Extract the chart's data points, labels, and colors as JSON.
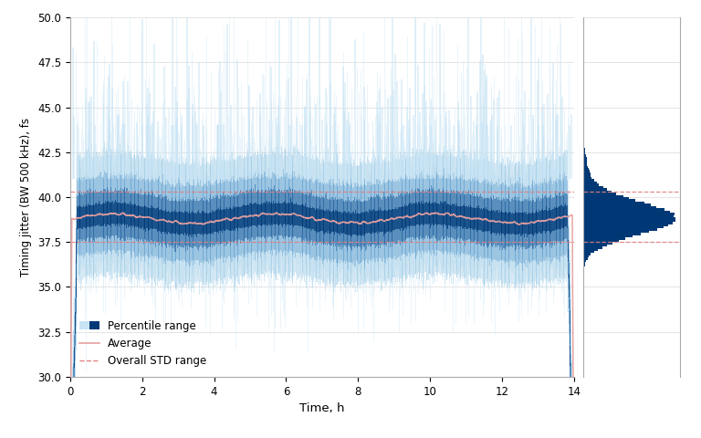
{
  "ylim": [
    30.0,
    50.0
  ],
  "xlim": [
    0,
    14
  ],
  "yticks": [
    30,
    32.5,
    35,
    37.5,
    40,
    42.5,
    45,
    47.5,
    50
  ],
  "xticks": [
    0,
    2,
    4,
    6,
    8,
    10,
    12,
    14
  ],
  "xlabel": "Time, h",
  "ylabel": "Timing jitter (BW 500 kHz), fs",
  "mean_value": 38.8,
  "std_upper": 40.3,
  "std_lower": 37.5,
  "color_dark_blue": "#003876",
  "color_light_blue": "#c8dff0",
  "color_avg_line": "#e8a0a0",
  "color_std_line": "#e08080",
  "legend_labels": [
    "Percentile range",
    "Average",
    "Overall STD range"
  ],
  "n_time_points": 2000,
  "n_traces": 3000,
  "seed": 42,
  "hist_std": 0.9,
  "hist_n": 80000
}
